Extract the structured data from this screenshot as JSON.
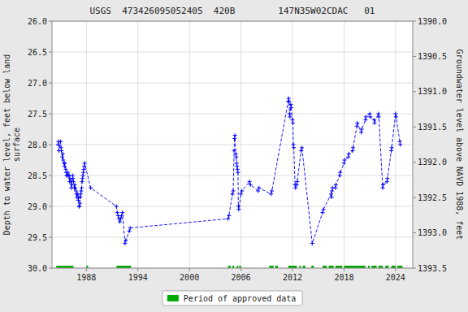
{
  "chart_data": {
    "type": "line",
    "title": "USGS  473426095052405  420B        147N35W02CDAC   01",
    "ylabel": "Depth to water level, feet below land\nsurface",
    "y2label": "Groundwater level above NAVD 1988, feet",
    "xlim": [
      1984.0,
      2026.0
    ],
    "xticks": [
      1988,
      1994,
      2000,
      2006,
      2012,
      2018,
      2024
    ],
    "ylim": [
      30.0,
      26.0
    ],
    "yticks": [
      {
        "value": 26.0,
        "label": "26.0"
      },
      26.5,
      {
        "value": 27.0,
        "label": "27.0"
      },
      27.5,
      {
        "value": 28.0,
        "label": "28.0"
      },
      28.5,
      {
        "value": 29.0,
        "label": "29.0"
      },
      29.5,
      {
        "value": 30.0,
        "label": "30.0"
      }
    ],
    "y2lim": [
      1393.5,
      1390.0
    ],
    "y2ticks": [
      1393.5,
      {
        "value": 1393.0,
        "label": "1393.0"
      },
      1392.5,
      {
        "value": 1392.0,
        "label": "1392.0"
      },
      1391.5,
      {
        "value": 1391.0,
        "label": "1391.0"
      },
      1390.5,
      {
        "value": 1390.0,
        "label": "1390.0"
      }
    ],
    "grid": true,
    "legend": "bottom",
    "x": [
      1984.7,
      1984.75,
      1984.8,
      1985.0,
      1985.05,
      1985.1,
      1985.2,
      1985.25,
      1985.3,
      1985.4,
      1985.45,
      1985.5,
      1985.6,
      1985.65,
      1985.7,
      1985.8,
      1985.85,
      1985.9,
      1986.0,
      1986.05,
      1986.1,
      1986.2,
      1986.25,
      1986.3,
      1986.4,
      1986.45,
      1986.5,
      1986.6,
      1986.65,
      1986.7,
      1986.8,
      1986.85,
      1986.9,
      1987.0,
      1987.05,
      1987.1,
      1987.15,
      1987.2,
      1987.25,
      1987.3,
      1987.35,
      1987.4,
      1987.45,
      1987.5,
      1987.55,
      1987.6,
      1987.65,
      1987.7,
      1987.75,
      1987.8,
      1988.5,
      1991.5,
      1991.6,
      1991.7,
      1991.8,
      1991.9,
      1992.0,
      1992.1,
      1992.2,
      1992.5,
      1992.6,
      1993.0,
      1993.1,
      2004.5,
      2004.6,
      2005.0,
      2005.1,
      2005.2,
      2005.25,
      2005.3,
      2005.4,
      2005.45,
      2005.5,
      2005.55,
      2005.6,
      2005.65,
      2005.7,
      2005.75,
      2006.0,
      2006.1,
      2007.0,
      2007.1,
      2008.0,
      2008.1,
      2009.5,
      2009.6,
      2011.5,
      2011.55,
      2011.6,
      2011.65,
      2011.7,
      2011.8,
      2011.85,
      2012.0,
      2012.05,
      2012.1,
      2012.15,
      2012.3,
      2012.35,
      2012.5,
      2012.55,
      2013.0,
      2013.1,
      2014.3,
      2015.5,
      2015.6,
      2016.5,
      2016.55,
      2016.6,
      2016.65,
      2017.0,
      2017.05,
      2017.5,
      2017.55,
      2018.0,
      2018.05,
      2018.5,
      2018.55,
      2019.0,
      2019.05,
      2019.5,
      2019.55,
      2020.0,
      2020.05,
      2020.5,
      2020.55,
      2021.0,
      2021.05,
      2021.5,
      2021.55,
      2022.0,
      2022.05,
      2022.5,
      2022.55,
      2023.0,
      2023.05,
      2023.5,
      2023.55,
      2024.0,
      2024.05,
      2024.5,
      2024.55
    ],
    "series": [
      {
        "color": "#0000ff",
        "marker": "plus",
        "line_style": "dashed",
        "values": [
          28.0,
          27.95,
          28.1,
          27.95,
          28.05,
          28.1,
          28.2,
          28.15,
          28.25,
          28.3,
          28.35,
          28.3,
          28.4,
          28.45,
          28.5,
          28.5,
          28.45,
          28.5,
          28.5,
          28.6,
          28.55,
          28.6,
          28.7,
          28.65,
          28.5,
          28.55,
          28.6,
          28.7,
          28.65,
          28.7,
          28.75,
          28.8,
          28.85,
          28.8,
          28.9,
          28.85,
          29.0,
          29.0,
          28.95,
          28.85,
          28.8,
          28.75,
          28.7,
          28.6,
          28.55,
          28.5,
          28.45,
          28.4,
          28.35,
          28.3,
          28.7,
          29.0,
          29.1,
          29.15,
          29.2,
          29.25,
          29.2,
          29.15,
          29.1,
          29.6,
          29.55,
          29.4,
          29.35,
          29.2,
          29.15,
          28.8,
          28.75,
          28.1,
          27.9,
          27.85,
          28.15,
          28.2,
          28.3,
          28.35,
          28.4,
          28.45,
          29.0,
          29.05,
          28.8,
          28.75,
          28.6,
          28.65,
          28.75,
          28.7,
          28.8,
          28.75,
          27.3,
          27.25,
          27.3,
          27.5,
          27.55,
          27.35,
          27.4,
          27.6,
          27.65,
          28.0,
          28.05,
          28.65,
          28.7,
          28.65,
          28.6,
          28.1,
          28.05,
          29.6,
          29.1,
          29.05,
          28.8,
          28.85,
          28.75,
          28.7,
          28.7,
          28.65,
          28.5,
          28.45,
          28.3,
          28.25,
          28.2,
          28.15,
          28.1,
          28.05,
          27.7,
          27.65,
          27.8,
          27.75,
          27.6,
          27.55,
          27.5,
          27.55,
          27.6,
          27.65,
          27.5,
          27.55,
          28.7,
          28.65,
          28.6,
          28.55,
          28.1,
          28.05,
          27.5,
          27.55,
          27.95,
          28.0
        ]
      },
      {
        "name": "Period of approved data",
        "type": "span",
        "color": "#00aa00",
        "y": 30.0,
        "starts": [
          1984.5,
          1988.0,
          1991.5,
          2004.5,
          2005.0,
          2005.5,
          2005.8,
          2009.3,
          2010.0,
          2011.5,
          2012.8,
          2013.2,
          2014.2,
          2015.5,
          2016.2,
          2017.0,
          2018.0,
          2020.8,
          2021.2,
          2022.0,
          2022.8,
          2023.5,
          2024.2
        ],
        "ends": [
          1986.5,
          1988.2,
          1993.2,
          2004.8,
          2005.2,
          2005.7,
          2006.0,
          2009.8,
          2010.3,
          2012.5,
          2013.0,
          2013.5,
          2014.5,
          2016.0,
          2016.8,
          2017.8,
          2020.5,
          2021.0,
          2021.8,
          2022.5,
          2023.2,
          2024.0,
          2024.8
        ]
      }
    ]
  }
}
